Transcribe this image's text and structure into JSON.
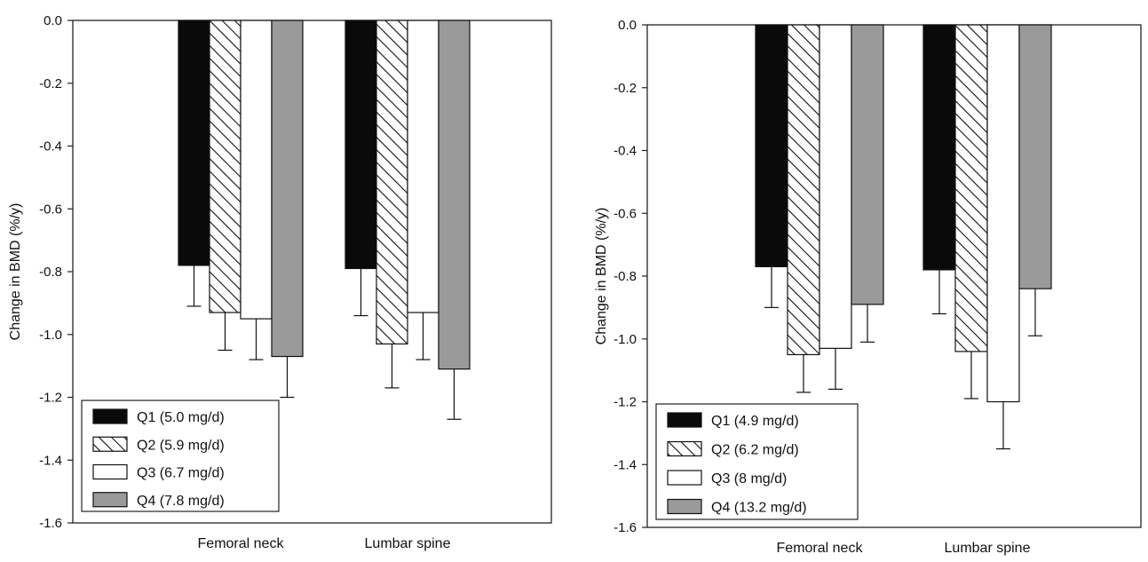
{
  "chart_data": [
    {
      "type": "bar",
      "title": "",
      "xlabel": "",
      "ylabel": "Change in BMD (%/y)",
      "ylim": [
        -1.6,
        0.0
      ],
      "yticks": [
        "0.0",
        "-0.2",
        "-0.4",
        "-0.6",
        "-0.8",
        "-1.0",
        "-1.2",
        "-1.4",
        "-1.6"
      ],
      "grid": false,
      "legend_position": "bottom-left",
      "categories": [
        "Femoral neck",
        "Lumbar spine"
      ],
      "series": [
        {
          "name": "Q1 (5.0 mg/d)",
          "fill": "solid-black",
          "values": [
            -0.78,
            -0.79
          ],
          "error": [
            0.13,
            0.15
          ]
        },
        {
          "name": "Q2 (5.9 mg/d)",
          "fill": "hatched",
          "values": [
            -0.93,
            -1.03
          ],
          "error": [
            0.12,
            0.14
          ]
        },
        {
          "name": "Q3 (6.7 mg/d)",
          "fill": "white",
          "values": [
            -0.95,
            -0.93
          ],
          "error": [
            0.13,
            0.15
          ]
        },
        {
          "name": "Q4 (7.8 mg/d)",
          "fill": "gray",
          "values": [
            -1.07,
            -1.11
          ],
          "error": [
            0.13,
            0.16
          ]
        }
      ]
    },
    {
      "type": "bar",
      "title": "",
      "xlabel": "",
      "ylabel": "Change in BMD (%/y)",
      "ylim": [
        -1.6,
        0.0
      ],
      "yticks": [
        "0.0",
        "-0.2",
        "-0.4",
        "-0.6",
        "-0.8",
        "-1.0",
        "-1.2",
        "-1.4",
        "-1.6"
      ],
      "grid": false,
      "legend_position": "bottom-left",
      "categories": [
        "Femoral neck",
        "Lumbar spine"
      ],
      "series": [
        {
          "name": "Q1 (4.9 mg/d)",
          "fill": "solid-black",
          "values": [
            -0.77,
            -0.78
          ],
          "error": [
            0.13,
            0.14
          ]
        },
        {
          "name": "Q2 (6.2 mg/d)",
          "fill": "hatched",
          "values": [
            -1.05,
            -1.04
          ],
          "error": [
            0.12,
            0.15
          ]
        },
        {
          "name": "Q3 (8 mg/d)",
          "fill": "white",
          "values": [
            -1.03,
            -1.2
          ],
          "error": [
            0.13,
            0.15
          ]
        },
        {
          "name": "Q4 (13.2 mg/d)",
          "fill": "gray",
          "values": [
            -0.89,
            -0.84
          ],
          "error": [
            0.12,
            0.15
          ]
        }
      ]
    }
  ],
  "colors": {
    "solid-black": "#0a0a0a",
    "gray": "#9a9a9a",
    "white": "#ffffff",
    "hatch-stroke": "#111111"
  }
}
